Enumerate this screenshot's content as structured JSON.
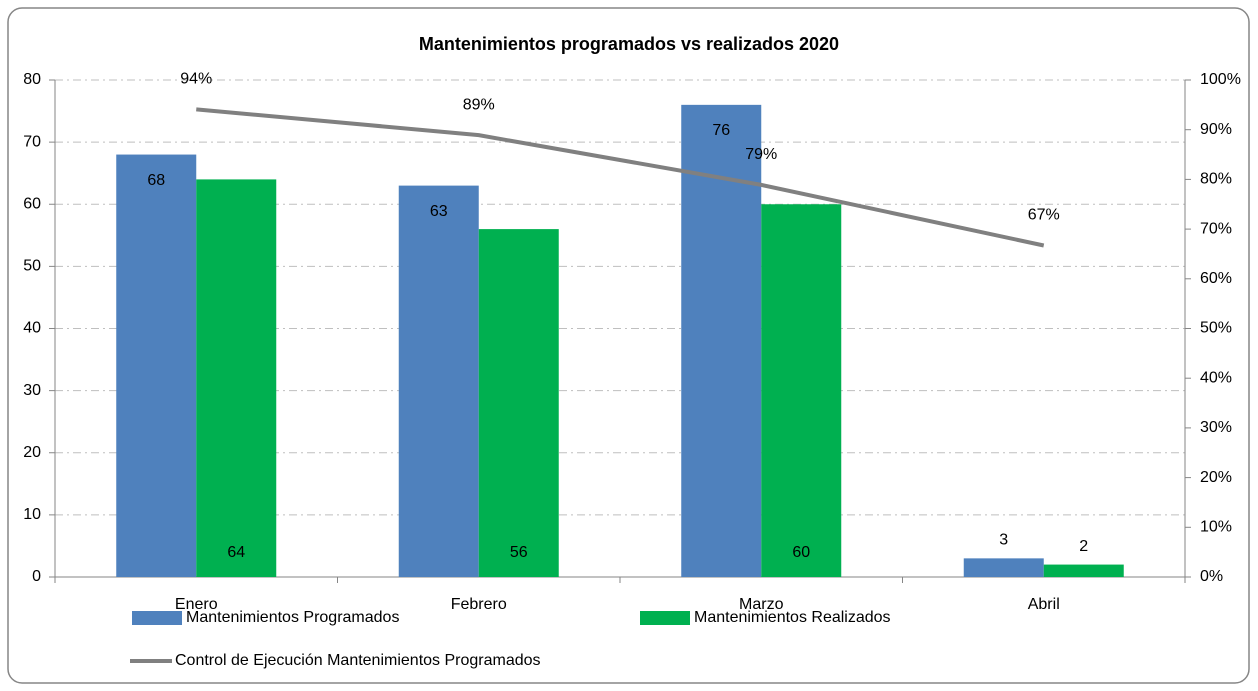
{
  "chart_data": {
    "type": "bar_line",
    "title": "Mantenimientos programados vs realizados 2020",
    "categories": [
      "Enero",
      "Febrero",
      "Marzo",
      "Abril"
    ],
    "series": [
      {
        "name": "Mantenimientos Programados",
        "color": "#4f81bd",
        "type": "bar",
        "values": [
          68,
          63,
          76,
          3
        ]
      },
      {
        "name": "Mantenimientos Realizados",
        "color": "#00b050",
        "type": "bar",
        "values": [
          64,
          56,
          60,
          2
        ]
      },
      {
        "name": "Control de Ejecución Mantenimientos Programados",
        "color": "#808080",
        "type": "line",
        "axis": "y2",
        "values": [
          94.1,
          88.9,
          78.9,
          66.7
        ],
        "value_labels": [
          "94%",
          "89%",
          "79%",
          "67%"
        ]
      }
    ],
    "ylim": [
      0,
      80
    ],
    "yticks": [
      0,
      10,
      20,
      30,
      40,
      50,
      60,
      70,
      80
    ],
    "y2lim": [
      0,
      100
    ],
    "y2ticks": [
      {
        "value": 0,
        "label": "0%"
      },
      {
        "value": 10,
        "label": "10%"
      },
      {
        "value": 20,
        "label": "20%"
      },
      {
        "value": 30,
        "label": "30%"
      },
      {
        "value": 40,
        "label": "40%"
      },
      {
        "value": 50,
        "label": "50%"
      },
      {
        "value": 60,
        "label": "60%"
      },
      {
        "value": 70,
        "label": "70%"
      },
      {
        "value": 80,
        "label": "80%"
      },
      {
        "value": 90,
        "label": "90%"
      },
      {
        "value": 100,
        "label": "100%"
      }
    ],
    "grid": true,
    "legend": "bottom"
  }
}
